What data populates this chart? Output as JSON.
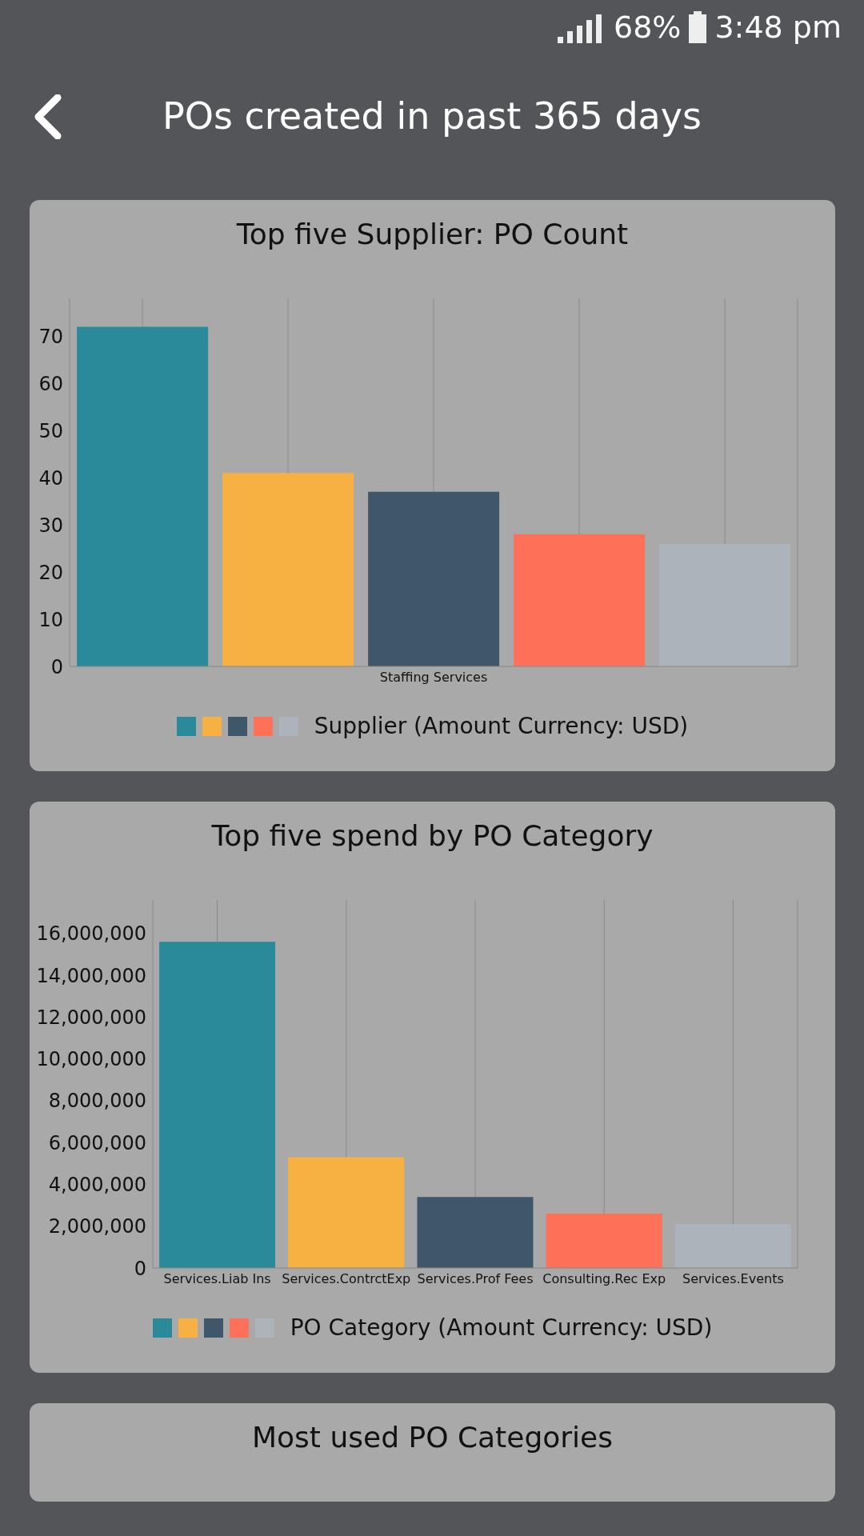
{
  "chart_data": [
    {
      "type": "bar",
      "title": "Top five Supplier: PO Count",
      "annotations": [
        "68%",
        "3:48 pm",
        "POs created in past 365 days"
      ],
      "categories": [
        null,
        null,
        "Staffing Services",
        null,
        null
      ],
      "series": [
        {
          "name": "Supplier (Amount Currency: USD)",
          "colors": [
            "#2a8a99",
            "#f7b142",
            "#3f566b",
            "#ff7058",
            "#acb3bb"
          ],
          "values": [
            72,
            41,
            37,
            28,
            26
          ]
        }
      ],
      "ylim": [
        0,
        78
      ],
      "yticks": [
        0,
        10,
        20,
        30,
        40,
        50,
        60,
        70
      ],
      "grid": "x",
      "legend": "bottom"
    },
    {
      "type": "bar",
      "title": "Top five spend by PO Category",
      "categories": [
        "Services.Liab Ins",
        "Services.ContrctExp",
        "Services.Prof Fees",
        "Consulting.Rec Exp",
        "Services.Events"
      ],
      "series": [
        {
          "name": "PO Category (Amount Currency: USD)",
          "colors": [
            "#2a8a99",
            "#f7b142",
            "#3f566b",
            "#ff7058",
            "#acb3bb"
          ],
          "values": [
            15600000,
            5300000,
            3400000,
            2600000,
            2100000
          ]
        }
      ],
      "ylim": [
        0,
        17600000
      ],
      "yticks": [
        {
          "value": 0,
          "label": "0"
        },
        {
          "value": 2000000,
          "label": "2,000,000"
        },
        {
          "value": 4000000,
          "label": "4,000,000"
        },
        {
          "value": 6000000,
          "label": "6,000,000"
        },
        {
          "value": 8000000,
          "label": "8,000,000"
        },
        {
          "value": 10000000,
          "label": "10,000,000"
        },
        {
          "value": 12000000,
          "label": "12,000,000"
        },
        {
          "value": 14000000,
          "label": "14,000,000"
        },
        {
          "value": 16000000,
          "label": "16,000,000"
        }
      ],
      "grid": "x",
      "legend": "bottom"
    },
    {
      "type": "other",
      "title": "Most used PO Categories"
    }
  ]
}
